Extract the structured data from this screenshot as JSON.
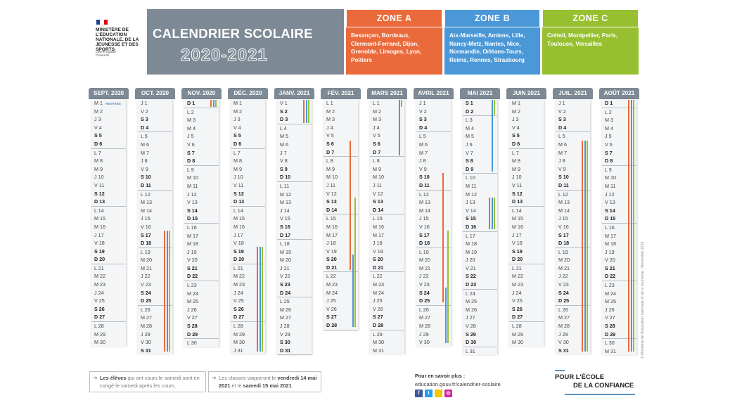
{
  "header": {
    "ministry": "Ministère de l'Éducation nationale, de la jeunesse et des sports",
    "motto": "Liberté Égalité Fraternité",
    "title": "CALENDRIER SCOLAIRE",
    "year": "2020-2021"
  },
  "zones": [
    {
      "name": "ZONE A",
      "color": "#ea6a3b",
      "cities": "Besançon, Bordeaux, Clermont-Ferrand, Dijon, Grenoble, Limoges, Lyon, Poitiers"
    },
    {
      "name": "ZONE B",
      "color": "#4a98d8",
      "cities": "Aix-Marseille, Amiens, Lille, Nancy-Metz, Nantes, Nice, Normandie, Orléans-Tours, Reims, Rennes, Strasbourg"
    },
    {
      "name": "ZONE C",
      "color": "#97c031",
      "cities": "Créteil, Montpellier, Paris, Toulouse, Versailles"
    }
  ],
  "months": [
    {
      "label": "SEPT. 2020",
      "start": 2,
      "days": 30,
      "badge_day": 1,
      "badge": "RENTRÉE"
    },
    {
      "label": "OCT. 2020",
      "start": 4,
      "days": 31
    },
    {
      "label": "NOV. 2020",
      "start": 0,
      "days": 30
    },
    {
      "label": "DÉC. 2020",
      "start": 2,
      "days": 31
    },
    {
      "label": "JANV. 2021",
      "start": 5,
      "days": 31
    },
    {
      "label": "FÉV. 2021",
      "start": 1,
      "days": 28
    },
    {
      "label": "MARS 2021",
      "start": 1,
      "days": 31
    },
    {
      "label": "AVRIL 2021",
      "start": 4,
      "days": 30
    },
    {
      "label": "MAI 2021",
      "start": 6,
      "days": 31
    },
    {
      "label": "JUIN 2021",
      "start": 2,
      "days": 30
    },
    {
      "label": "JUIL. 2021",
      "start": 4,
      "days": 31
    },
    {
      "label": "AOÛT 2021",
      "start": 0,
      "days": 31
    }
  ],
  "weekday_letters": [
    "D",
    "L",
    "M",
    "M",
    "J",
    "V",
    "S"
  ],
  "holidays": [
    {
      "month": 1,
      "zone": "a",
      "from": 17,
      "to": 31
    },
    {
      "month": 1,
      "zone": "b",
      "from": 17,
      "to": 31
    },
    {
      "month": 1,
      "zone": "c",
      "from": 17,
      "to": 31
    },
    {
      "month": 2,
      "zone": "a",
      "from": 1,
      "to": 1
    },
    {
      "month": 2,
      "zone": "b",
      "from": 1,
      "to": 1
    },
    {
      "month": 2,
      "zone": "c",
      "from": 1,
      "to": 1
    },
    {
      "month": 3,
      "zone": "a",
      "from": 19,
      "to": 31
    },
    {
      "month": 3,
      "zone": "b",
      "from": 19,
      "to": 31
    },
    {
      "month": 3,
      "zone": "c",
      "from": 19,
      "to": 31
    },
    {
      "month": 4,
      "zone": "a",
      "from": 1,
      "to": 3
    },
    {
      "month": 4,
      "zone": "b",
      "from": 1,
      "to": 3
    },
    {
      "month": 4,
      "zone": "c",
      "from": 1,
      "to": 3
    },
    {
      "month": 5,
      "zone": "a",
      "from": 6,
      "to": 21
    },
    {
      "month": 5,
      "zone": "b",
      "from": 20,
      "to": 28
    },
    {
      "month": 5,
      "zone": "c",
      "from": 13,
      "to": 28
    },
    {
      "month": 6,
      "zone": "b",
      "from": 1,
      "to": 7
    },
    {
      "month": 6,
      "zone": "c",
      "from": 1,
      "to": 1
    },
    {
      "month": 7,
      "zone": "a",
      "from": 10,
      "to": 25
    },
    {
      "month": 7,
      "zone": "b",
      "from": 24,
      "to": 30
    },
    {
      "month": 7,
      "zone": "c",
      "from": 17,
      "to": 30
    },
    {
      "month": 8,
      "zone": "b",
      "from": 1,
      "to": 9
    },
    {
      "month": 8,
      "zone": "c",
      "from": 1,
      "to": 2
    },
    {
      "month": 8,
      "zone": "a",
      "from": 13,
      "to": 16
    },
    {
      "month": 8,
      "zone": "b",
      "from": 13,
      "to": 16
    },
    {
      "month": 8,
      "zone": "c",
      "from": 13,
      "to": 16
    },
    {
      "month": 10,
      "zone": "a",
      "from": 6,
      "to": 31
    },
    {
      "month": 10,
      "zone": "b",
      "from": 6,
      "to": 31
    },
    {
      "month": 10,
      "zone": "c",
      "from": 6,
      "to": 31
    },
    {
      "month": 11,
      "zone": "a",
      "from": 1,
      "to": 31
    },
    {
      "month": 11,
      "zone": "b",
      "from": 1,
      "to": 31
    },
    {
      "month": 11,
      "zone": "c",
      "from": 1,
      "to": 31
    }
  ],
  "notes": {
    "left_bold": "Les élèves",
    "left_text": " qui ont cours le samedi sont en congé le samedi après les cours.",
    "right_text1": "Les classes vaqueront le ",
    "right_bold1": "vendredi 14 mai 2021",
    "right_text2": " et le ",
    "right_bold2": "samedi 15 mai 2021",
    "right_text3": "."
  },
  "info": {
    "label": "Pour en savoir plus :",
    "url": "education.gouv.fr/calendrier-scolaire",
    "social_icons": [
      "facebook-icon",
      "twitter-icon",
      "snapchat-icon",
      "instagram-icon"
    ]
  },
  "slogan": {
    "line1": "POUR L'ÉCOLE",
    "line2": "DE LA CONFIANCE"
  },
  "copyright": "© Ministère de l'Éducation nationale et de la Jeunesse - Novembre 2019"
}
